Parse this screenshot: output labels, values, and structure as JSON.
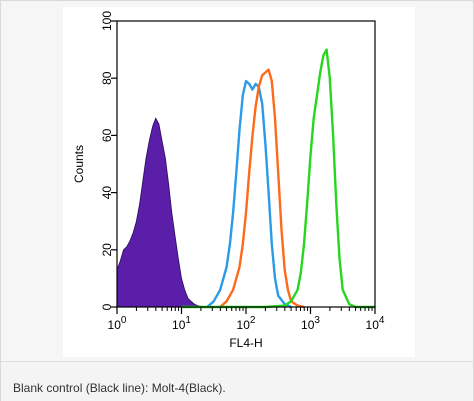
{
  "caption": "Blank control (Black line): Molt-4(Black).",
  "chart_data": {
    "type": "area",
    "title": "",
    "xlabel": "FL4-H",
    "ylabel": "Counts",
    "xscale": "log",
    "xlim": [
      1,
      10000
    ],
    "ylim": [
      0,
      100
    ],
    "x_ticks": [
      {
        "value": 1,
        "base": "10",
        "exp": "0"
      },
      {
        "value": 10,
        "base": "10",
        "exp": "1"
      },
      {
        "value": 100,
        "base": "10",
        "exp": "2"
      },
      {
        "value": 1000,
        "base": "10",
        "exp": "3"
      },
      {
        "value": 10000,
        "base": "10",
        "exp": "4"
      }
    ],
    "y_ticks": [
      0,
      20,
      40,
      60,
      80,
      100
    ],
    "grid": false,
    "legend": "none",
    "series": [
      {
        "color": "#5b1ea8",
        "fill": true,
        "x": [
          1,
          1.12,
          1.26,
          1.41,
          1.58,
          1.78,
          2.0,
          2.24,
          2.51,
          2.82,
          3.16,
          3.55,
          3.98,
          4.47,
          5.01,
          5.62,
          6.31,
          7.08,
          7.94,
          8.91,
          10.0,
          11.2,
          12.6,
          14.1,
          15.8,
          17.8,
          20.0,
          22.4
        ],
        "y": [
          13,
          16,
          20,
          21,
          23,
          26,
          30,
          36,
          44,
          52,
          58,
          63,
          66,
          64,
          58,
          52,
          43,
          33,
          25,
          17,
          10,
          6,
          3,
          2,
          1,
          0.5,
          0.2,
          0
        ]
      },
      {
        "color": "#2b9be8",
        "fill": false,
        "x": [
          25,
          31.6,
          39.8,
          50.1,
          56.2,
          63.1,
          70.8,
          79.4,
          89.1,
          100,
          112,
          126,
          141,
          158,
          178,
          200,
          224,
          251,
          282,
          316,
          398,
          501
        ],
        "y": [
          0,
          2,
          6,
          14,
          22,
          33,
          47,
          62,
          74,
          79,
          78,
          76,
          78,
          77,
          71,
          57,
          40,
          22,
          10,
          4,
          1,
          0
        ]
      },
      {
        "color": "#ff6a1a",
        "fill": false,
        "x": [
          39.8,
          50.1,
          63.1,
          79.4,
          89.1,
          100,
          112,
          126,
          141,
          158,
          178,
          200,
          224,
          251,
          282,
          316,
          355,
          398,
          447,
          501,
          631,
          794
        ],
        "y": [
          0,
          2,
          6,
          14,
          22,
          33,
          47,
          60,
          70,
          77,
          81,
          82,
          83,
          79,
          66,
          47,
          27,
          13,
          6,
          2,
          0.5,
          0
        ]
      },
      {
        "color": "#27d61e",
        "fill": false,
        "x": [
          10,
          50,
          200,
          400,
          501,
          631,
          708,
          794,
          891,
          1000,
          1122,
          1259,
          1413,
          1585,
          1778,
          1995,
          2239,
          2512,
          2818,
          3162,
          3981,
          5012,
          10000
        ],
        "y": [
          0,
          0,
          0,
          0.5,
          2,
          6,
          12,
          22,
          37,
          53,
          66,
          74,
          82,
          88,
          90,
          80,
          60,
          36,
          17,
          6,
          1,
          0,
          0
        ]
      }
    ]
  }
}
